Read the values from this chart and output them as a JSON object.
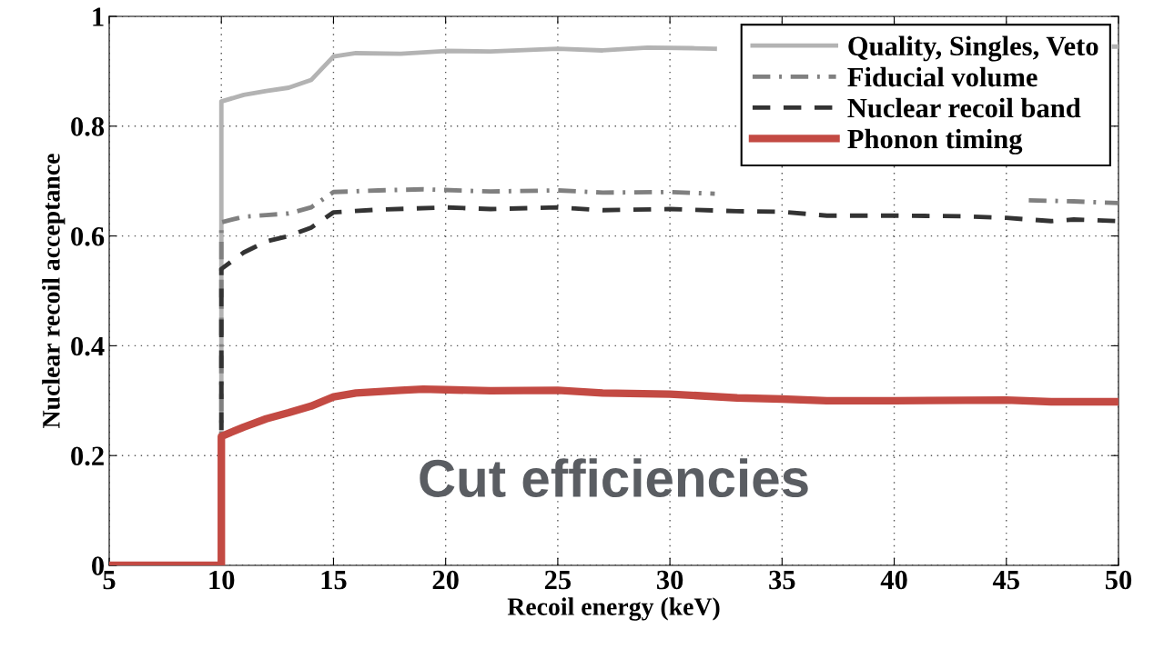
{
  "chart_data": {
    "type": "line",
    "xlabel": "Recoil energy (keV)",
    "ylabel": "Nuclear recoil acceptance",
    "annotations": [
      "Cut efficiencies"
    ],
    "xlim": [
      5,
      50
    ],
    "xticks": [
      5,
      10,
      15,
      20,
      25,
      30,
      35,
      40,
      45,
      50
    ],
    "ylim": [
      0,
      1
    ],
    "yticks": [
      0,
      0.2,
      0.4,
      0.6,
      0.8,
      1
    ],
    "grid": true,
    "legend": "top right",
    "marker": "none",
    "series": [
      {
        "name": "Quality, Singles, Veto",
        "color": "#b3b3b3",
        "line_style": "solid",
        "x": [
          5,
          10,
          10,
          11,
          12,
          13,
          14,
          15,
          16,
          18,
          20,
          22,
          25,
          27,
          29,
          31,
          32,
          33,
          49.8,
          50
        ],
        "values": [
          0,
          0,
          0.845,
          0.857,
          0.864,
          0.87,
          0.884,
          0.927,
          0.933,
          0.932,
          0.937,
          0.936,
          0.941,
          0.938,
          0.943,
          0.942,
          0.941,
          null,
          0.945,
          0.945
        ]
      },
      {
        "name": "Fiducial volume",
        "color": "#808080",
        "line_style": "dashdot",
        "x": [
          5,
          10,
          10,
          11,
          12,
          13,
          14,
          15,
          17,
          19,
          22,
          25,
          27,
          30,
          32,
          33,
          46,
          48,
          50
        ],
        "values": [
          0,
          0,
          0.625,
          0.635,
          0.638,
          0.641,
          0.652,
          0.68,
          0.683,
          0.685,
          0.681,
          0.683,
          0.679,
          0.68,
          0.677,
          null,
          0.665,
          0.663,
          0.66
        ]
      },
      {
        "name": "Nuclear recoil band",
        "color": "#333333",
        "line_style": "dashed",
        "x": [
          5,
          10,
          10,
          11,
          12,
          13,
          14,
          15,
          17,
          20,
          22,
          25,
          27,
          30,
          33,
          35,
          37,
          40,
          43,
          45,
          47,
          48,
          50
        ],
        "values": [
          0,
          0,
          0.54,
          0.57,
          0.59,
          0.6,
          0.615,
          0.643,
          0.648,
          0.652,
          0.649,
          0.652,
          0.647,
          0.649,
          0.645,
          0.644,
          0.637,
          0.637,
          0.636,
          0.633,
          0.627,
          0.63,
          0.627
        ]
      },
      {
        "name": "Phonon timing",
        "color": "#c34a43",
        "line_style": "solid",
        "x": [
          5,
          10,
          10,
          11,
          12,
          13,
          14,
          15,
          16,
          18,
          19,
          20,
          22,
          25,
          27,
          30,
          33,
          35,
          37,
          40,
          45,
          47,
          50
        ],
        "values": [
          0,
          0,
          0.235,
          0.252,
          0.267,
          0.278,
          0.29,
          0.307,
          0.314,
          0.319,
          0.321,
          0.32,
          0.318,
          0.319,
          0.314,
          0.312,
          0.305,
          0.303,
          0.3,
          0.3,
          0.301,
          0.298,
          0.298
        ]
      }
    ]
  }
}
